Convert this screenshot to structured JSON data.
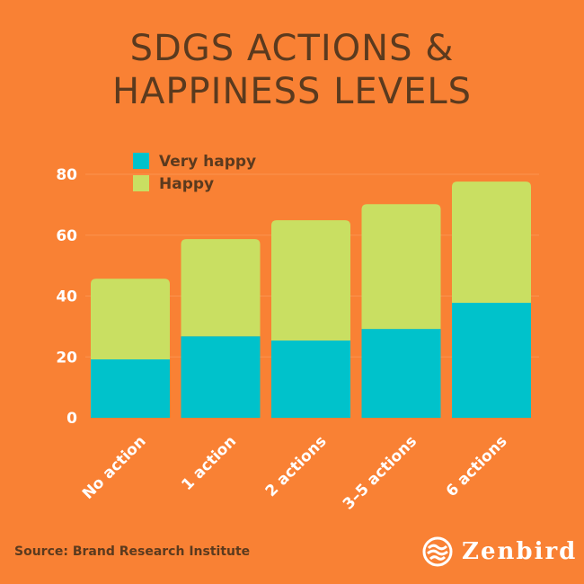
{
  "chart_data": {
    "type": "bar",
    "stacked": true,
    "title": "SDGS ACTIONS & HAPPINESS LEVELS",
    "categories": [
      "No action",
      "1 action",
      "2 actions",
      "3–5 actions",
      "6 actions"
    ],
    "series": [
      {
        "name": "Very happy",
        "color": "#00C2CB",
        "values": [
          19.2,
          26.8,
          25.4,
          29.2,
          37.8
        ]
      },
      {
        "name": "Happy",
        "color": "#C9DF62",
        "values": [
          26.5,
          31.9,
          39.5,
          41.0,
          39.8
        ]
      }
    ],
    "yticks": [
      "0",
      "20",
      "40",
      "60",
      "80"
    ],
    "ylim": [
      0,
      80
    ],
    "grid": true,
    "legend": "top-left"
  },
  "source": "Source: Brand Research Institute",
  "logo": {
    "text": "Zenbird",
    "icon": "zenbird-logo-icon"
  },
  "colors": {
    "background": "#F98134",
    "title": "#5B3A1E"
  }
}
